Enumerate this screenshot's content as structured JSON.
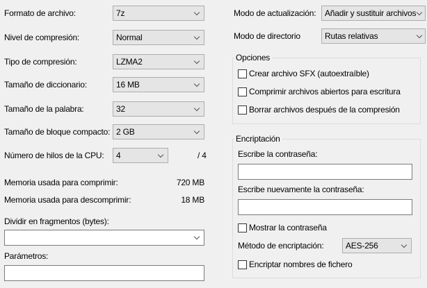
{
  "left": {
    "fields": [
      {
        "label": "Formato de archivo:",
        "value": "7z"
      },
      {
        "label": "Nivel de compresión:",
        "value": "Normal"
      },
      {
        "label": "Tipo de compresión:",
        "value": "LZMA2"
      },
      {
        "label": "Tamaño de diccionario:",
        "value": "16 MB"
      },
      {
        "label": "Tamaño de la palabra:",
        "value": "32"
      },
      {
        "label": "Tamaño de bloque compacto:",
        "value": "2 GB"
      },
      {
        "label": "Número de hilos de la CPU:",
        "value": "4"
      }
    ],
    "threads_total": "/ 4",
    "memory_compress_label": "Memoria usada para comprimir:",
    "memory_compress_value": "720 MB",
    "memory_decompress_label": "Memoria usada para descomprimir:",
    "memory_decompress_value": "18 MB",
    "split_label": "Dividir en fragmentos (bytes):",
    "split_value": "",
    "params_label": "Parámetros:",
    "params_value": ""
  },
  "right": {
    "update_mode_label": "Modo de actualización:",
    "update_mode_value": "Añadir y sustituir archivos",
    "dir_mode_label": "Modo de directorio",
    "dir_mode_value": "Rutas relativas",
    "options": {
      "title": "Opciones",
      "items": [
        {
          "label": "Crear archivo SFX (autoextraíble)",
          "checked": false
        },
        {
          "label": "Comprimir archivos abiertos para escritura",
          "checked": false
        },
        {
          "label": "Borrar archivos después de la compresión",
          "checked": false
        }
      ]
    },
    "encryption": {
      "title": "Encriptación",
      "password_label": "Escribe la contraseña:",
      "password_value": "",
      "repeat_label": "Escribe nuevamente la contraseña:",
      "repeat_value": "",
      "show_password_label": "Mostrar la contraseña",
      "method_label": "Método de encriptación:",
      "method_value": "AES-256",
      "encrypt_names_label": "Encriptar nombres de fichero"
    }
  }
}
